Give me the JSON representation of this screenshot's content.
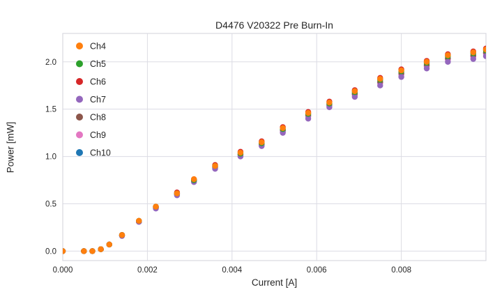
{
  "chart_data": {
    "type": "scatter",
    "title": "D4476 V20322 Pre Burn-In",
    "xlabel": "Current [A]",
    "ylabel": "Power [mW]",
    "xlim": [
      0,
      0.01
    ],
    "ylim": [
      -0.1,
      2.3
    ],
    "xticks": [
      0,
      0.002,
      0.004,
      0.006,
      0.008
    ],
    "xtick_labels": [
      "0.000",
      "0.002",
      "0.004",
      "0.006",
      "0.008"
    ],
    "yticks": [
      0.0,
      0.5,
      1.0,
      1.5,
      2.0
    ],
    "ytick_labels": [
      "0.0",
      "0.5",
      "1.0",
      "1.5",
      "2.0"
    ],
    "grid": true,
    "legend_position": "upper-left",
    "grid_color": "#dcdce4",
    "text_color": "#262626",
    "x": [
      0.0,
      0.0005,
      0.0007,
      0.0009,
      0.0011,
      0.0014,
      0.0018,
      0.0022,
      0.0027,
      0.0031,
      0.0036,
      0.0042,
      0.0047,
      0.0052,
      0.0058,
      0.0063,
      0.0069,
      0.0075,
      0.008,
      0.0086,
      0.0091,
      0.0097,
      0.01
    ],
    "series": [
      {
        "name": "Ch4",
        "color": "#ff7f0e",
        "values": [
          0.0,
          0.0,
          0.0,
          0.02,
          0.07,
          0.17,
          0.32,
          0.47,
          0.61,
          0.76,
          0.9,
          1.04,
          1.15,
          1.3,
          1.46,
          1.57,
          1.69,
          1.82,
          1.91,
          2.0,
          2.07,
          2.1,
          2.13
        ]
      },
      {
        "name": "Ch5",
        "color": "#2ca02c",
        "values": [
          0.0,
          0.0,
          0.0,
          0.02,
          0.07,
          0.17,
          0.32,
          0.47,
          0.61,
          0.75,
          0.9,
          1.03,
          1.14,
          1.29,
          1.45,
          1.56,
          1.68,
          1.81,
          1.9,
          1.99,
          2.06,
          2.09,
          2.12
        ]
      },
      {
        "name": "Ch6",
        "color": "#d62728",
        "values": [
          0.0,
          0.0,
          0.0,
          0.02,
          0.07,
          0.17,
          0.32,
          0.47,
          0.62,
          0.76,
          0.91,
          1.05,
          1.16,
          1.31,
          1.47,
          1.58,
          1.7,
          1.83,
          1.92,
          2.01,
          2.08,
          2.11,
          2.14
        ]
      },
      {
        "name": "Ch7",
        "color": "#9467bd",
        "values": [
          0.0,
          0.0,
          0.0,
          0.02,
          0.07,
          0.16,
          0.31,
          0.45,
          0.59,
          0.73,
          0.87,
          1.0,
          1.11,
          1.25,
          1.4,
          1.52,
          1.63,
          1.75,
          1.84,
          1.93,
          2.0,
          2.03,
          2.06
        ]
      },
      {
        "name": "Ch8",
        "color": "#8c564b",
        "values": [
          0.0,
          0.0,
          0.0,
          0.02,
          0.07,
          0.17,
          0.31,
          0.46,
          0.6,
          0.75,
          0.89,
          1.02,
          1.13,
          1.28,
          1.44,
          1.55,
          1.66,
          1.79,
          1.88,
          1.97,
          2.04,
          2.07,
          2.1
        ]
      },
      {
        "name": "Ch9",
        "color": "#e377c2",
        "values": [
          0.0,
          0.0,
          0.0,
          0.02,
          0.07,
          0.17,
          0.31,
          0.46,
          0.6,
          0.74,
          0.88,
          1.01,
          1.12,
          1.26,
          1.42,
          1.53,
          1.65,
          1.77,
          1.86,
          1.95,
          2.02,
          2.05,
          2.08
        ]
      },
      {
        "name": "Ch10",
        "color": "#1f77b4",
        "values": [
          0.0,
          0.0,
          0.0,
          0.02,
          0.07,
          0.17,
          0.31,
          0.46,
          0.6,
          0.74,
          0.88,
          1.02,
          1.12,
          1.27,
          1.43,
          1.54,
          1.66,
          1.78,
          1.87,
          1.96,
          2.03,
          2.06,
          2.09
        ]
      }
    ]
  }
}
